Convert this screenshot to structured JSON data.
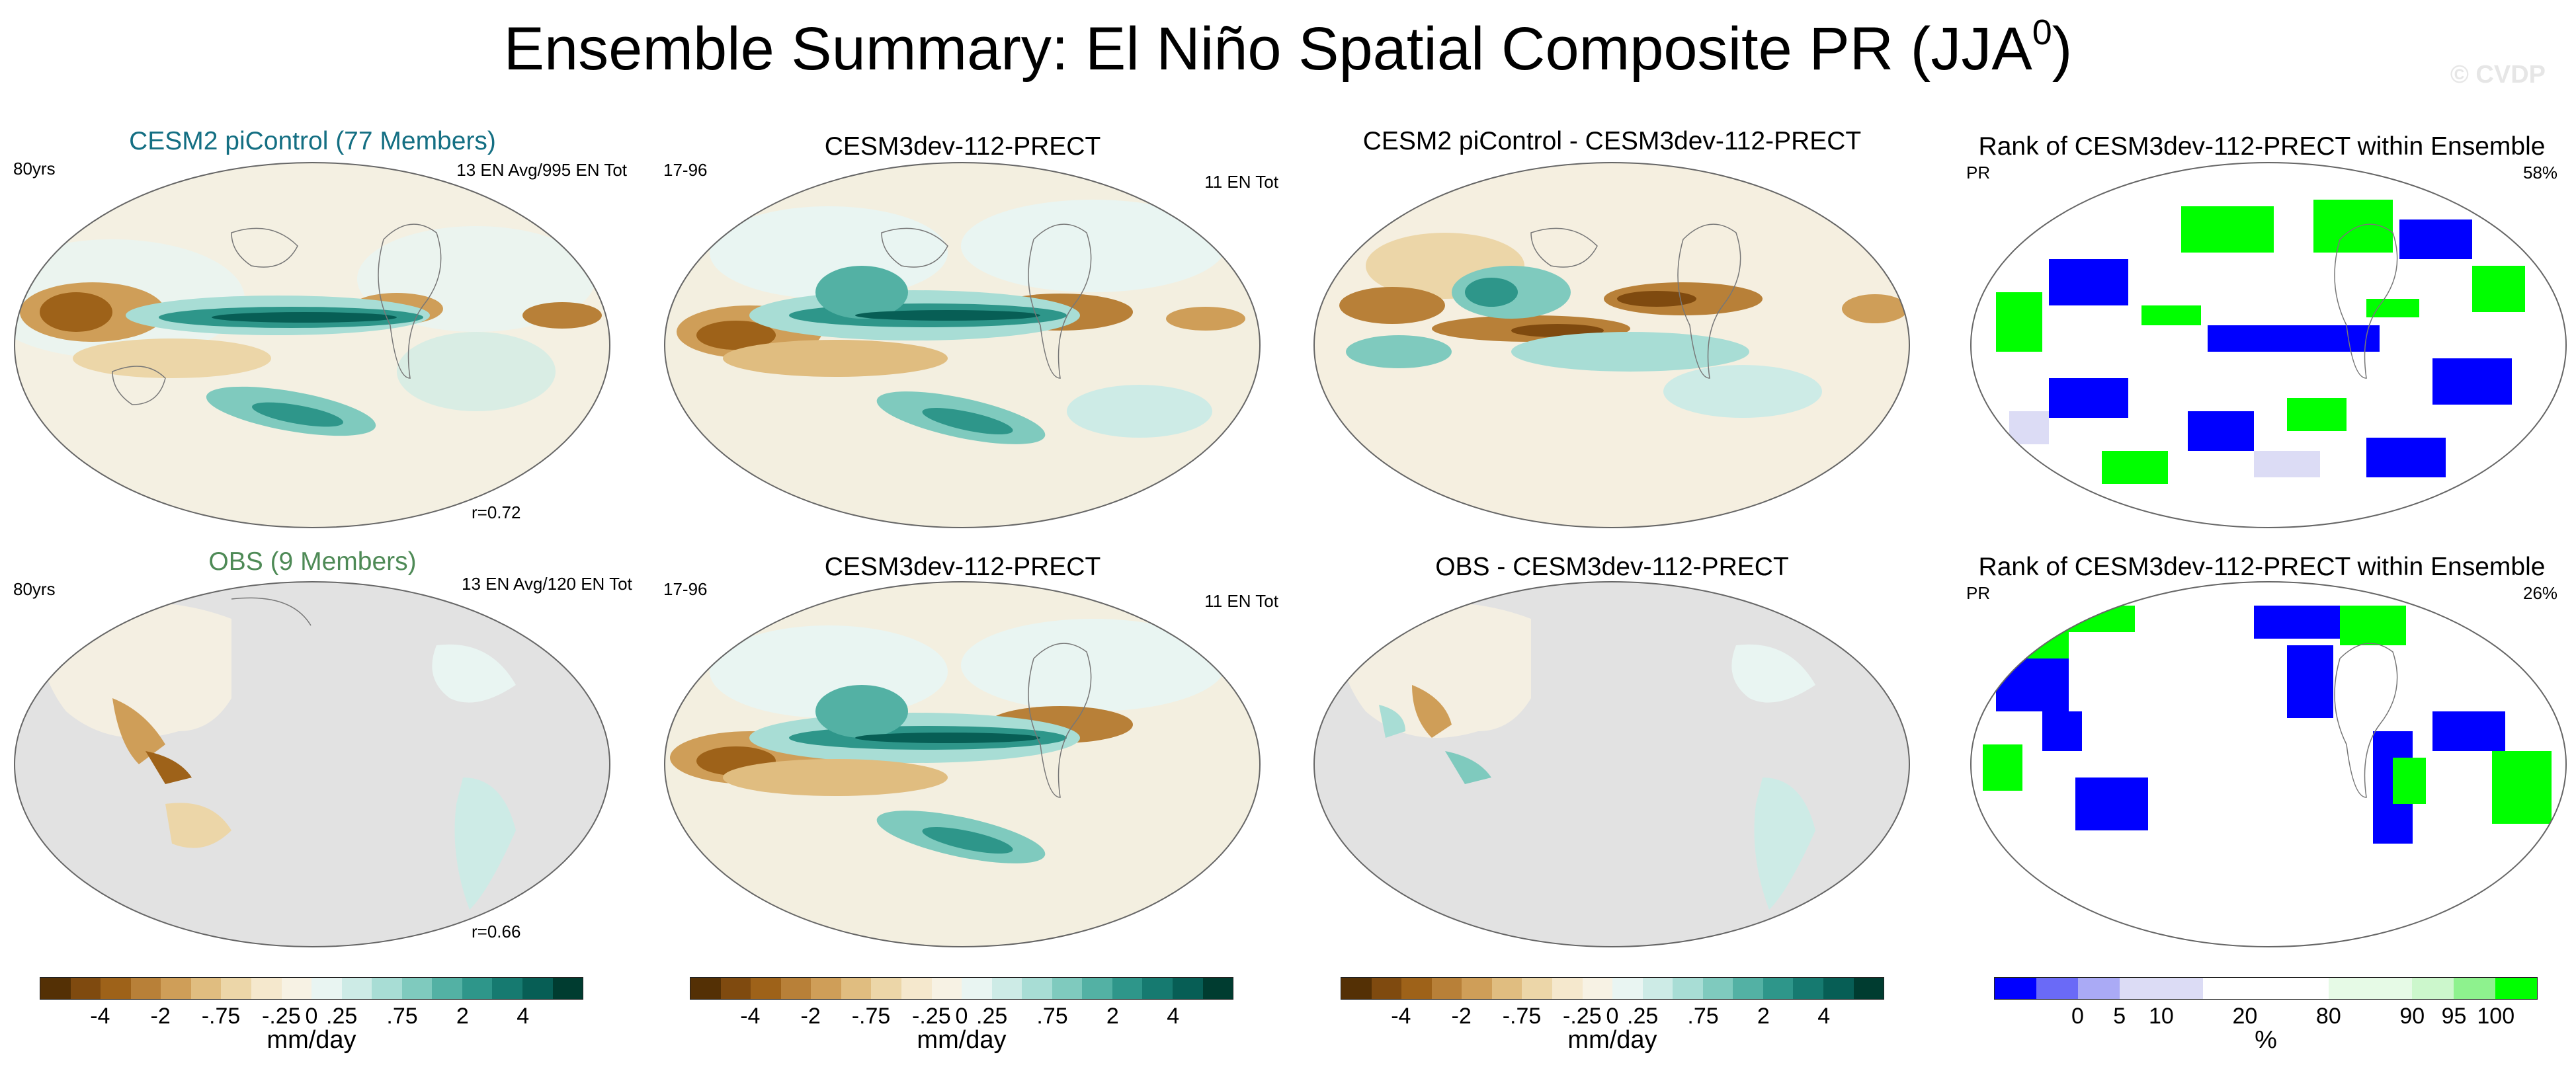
{
  "figure": {
    "title_main": "Ensemble Summary: El Niño Spatial Composite PR (JJA",
    "title_sup": "0",
    "title_end": ")",
    "watermark": "© CVDP"
  },
  "panels": [
    {
      "title": "CESM2 piControl (77 Members)",
      "left": "80yrs",
      "right": "13 EN Avg/995 EN Tot",
      "corr": "r=0.72"
    },
    {
      "title": "CESM3dev-112-PRECT",
      "left": "17-96",
      "right": "11 EN Tot"
    },
    {
      "title": "CESM2 piControl - CESM3dev-112-PRECT"
    },
    {
      "title": "Rank of CESM3dev-112-PRECT within Ensemble",
      "left": "PR",
      "right": "58%"
    },
    {
      "title": "OBS (9 Members)",
      "left": "80yrs",
      "right": "13 EN Avg/120 EN Tot",
      "corr": "r=0.66"
    },
    {
      "title": "CESM3dev-112-PRECT",
      "left": "17-96",
      "right": "11 EN Tot"
    },
    {
      "title": "OBS - CESM3dev-112-PRECT"
    },
    {
      "title": "Rank of CESM3dev-112-PRECT within Ensemble",
      "left": "PR",
      "right": "26%"
    }
  ],
  "colorbars": {
    "precip": {
      "colors": [
        "#543005",
        "#7f4a0f",
        "#9e6219",
        "#b88038",
        "#cf9e58",
        "#e0bd80",
        "#ecd6a8",
        "#f5e8cd",
        "#f7f2e4",
        "#e9f5f2",
        "#cdebe6",
        "#a8ddd5",
        "#7fcabe",
        "#53b1a4",
        "#2e968a",
        "#167a70",
        "#075e55",
        "#003c30"
      ],
      "tick_labels": [
        "-4",
        "-2",
        "-.75",
        "-.25",
        "0",
        ".25",
        ".75",
        "2",
        "4"
      ],
      "unit": "mm/day"
    },
    "rank": {
      "colors": [
        "#0000ff",
        "#6a6af7",
        "#aaaaf5",
        "#dcdcf5",
        "#dcdcf5",
        "#ffffff",
        "#ffffff",
        "#ffffff",
        "#e6fae6",
        "#e6fae6",
        "#ccf7cc",
        "#8ef28e",
        "#00ff00"
      ],
      "tick_labels": [
        "0",
        "5",
        "10",
        "20",
        "80",
        "90",
        "95",
        "100"
      ],
      "unit": "%"
    }
  }
}
